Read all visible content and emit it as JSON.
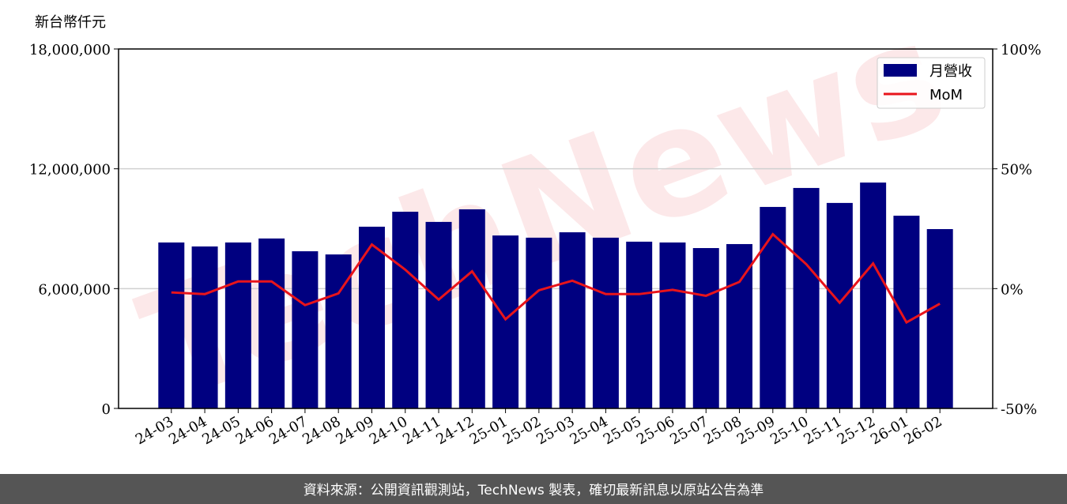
{
  "chart_data": {
    "type": "bar",
    "ylabel": "新台幣仟元",
    "watermark": "TechNews",
    "source": "資料來源：公開資訊觀測站，TechNews 製表，確切最新訊息以原站公告為準",
    "categories": [
      "24-03",
      "24-04",
      "24-05",
      "24-06",
      "24-07",
      "24-08",
      "24-09",
      "24-10",
      "24-11",
      "24-12",
      "25-01",
      "25-02",
      "25-03",
      "25-04",
      "25-05",
      "25-06",
      "25-07",
      "25-08",
      "25-09",
      "25-10",
      "25-11",
      "25-12",
      "26-01",
      "26-02"
    ],
    "series": [
      {
        "name": "月營收",
        "type": "bar",
        "color": "#000080",
        "values": [
          8310000,
          8110000,
          8310000,
          8510000,
          7870000,
          7710000,
          9100000,
          9850000,
          9340000,
          9970000,
          8660000,
          8550000,
          8820000,
          8550000,
          8350000,
          8310000,
          8030000,
          8230000,
          10090000,
          11040000,
          10290000,
          11310000,
          9650000,
          8980000
        ]
      },
      {
        "name": "MoM",
        "type": "line",
        "axis": "y2",
        "color": "#e8141b",
        "values": [
          -1.6,
          -2.3,
          3.0,
          3.0,
          -6.9,
          -2.0,
          18.4,
          7.9,
          -4.6,
          7.2,
          -12.8,
          -0.7,
          3.3,
          -2.3,
          -2.3,
          -0.5,
          -3.0,
          2.8,
          22.7,
          10.2,
          -5.9,
          10.5,
          -14.1,
          -6.3
        ]
      }
    ],
    "ylim": [
      0,
      18000000
    ],
    "yticks": [
      0,
      {
        "value": 6000000,
        "label": "6,000,000"
      },
      {
        "value": 12000000,
        "label": "12,000,000"
      },
      {
        "value": 18000000,
        "label": "18,000,000"
      }
    ],
    "y2lim": [
      -50,
      100
    ],
    "y2ticks": [
      {
        "value": -50,
        "label": "-50%"
      },
      {
        "value": 0,
        "label": "0%"
      },
      {
        "value": 50,
        "label": "50%"
      },
      {
        "value": 100,
        "label": "100%"
      }
    ],
    "grid": true,
    "legend": "upper right"
  }
}
